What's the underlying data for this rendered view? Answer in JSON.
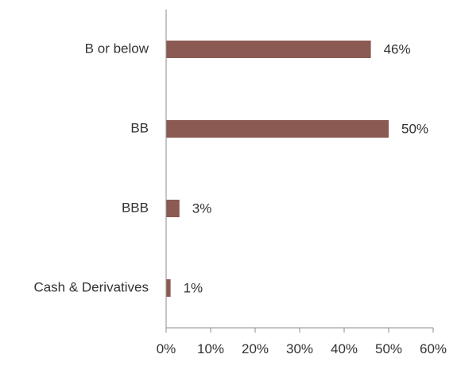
{
  "chart_data": {
    "type": "bar",
    "orientation": "horizontal",
    "categories": [
      "B or below",
      "BB",
      "BBB",
      "Cash & Derivatives"
    ],
    "values": [
      46,
      50,
      3,
      1
    ],
    "data_labels": [
      "46%",
      "50%",
      "3%",
      "1%"
    ],
    "xlim": [
      0,
      60
    ],
    "x_ticks": [
      0,
      10,
      20,
      30,
      40,
      50,
      60
    ],
    "x_tick_labels": [
      "0%",
      "10%",
      "20%",
      "30%",
      "40%",
      "50%",
      "60%"
    ],
    "title": "",
    "xlabel": "",
    "ylabel": "",
    "grid": false,
    "legend": "none",
    "bar_color": "#8b5a52"
  }
}
